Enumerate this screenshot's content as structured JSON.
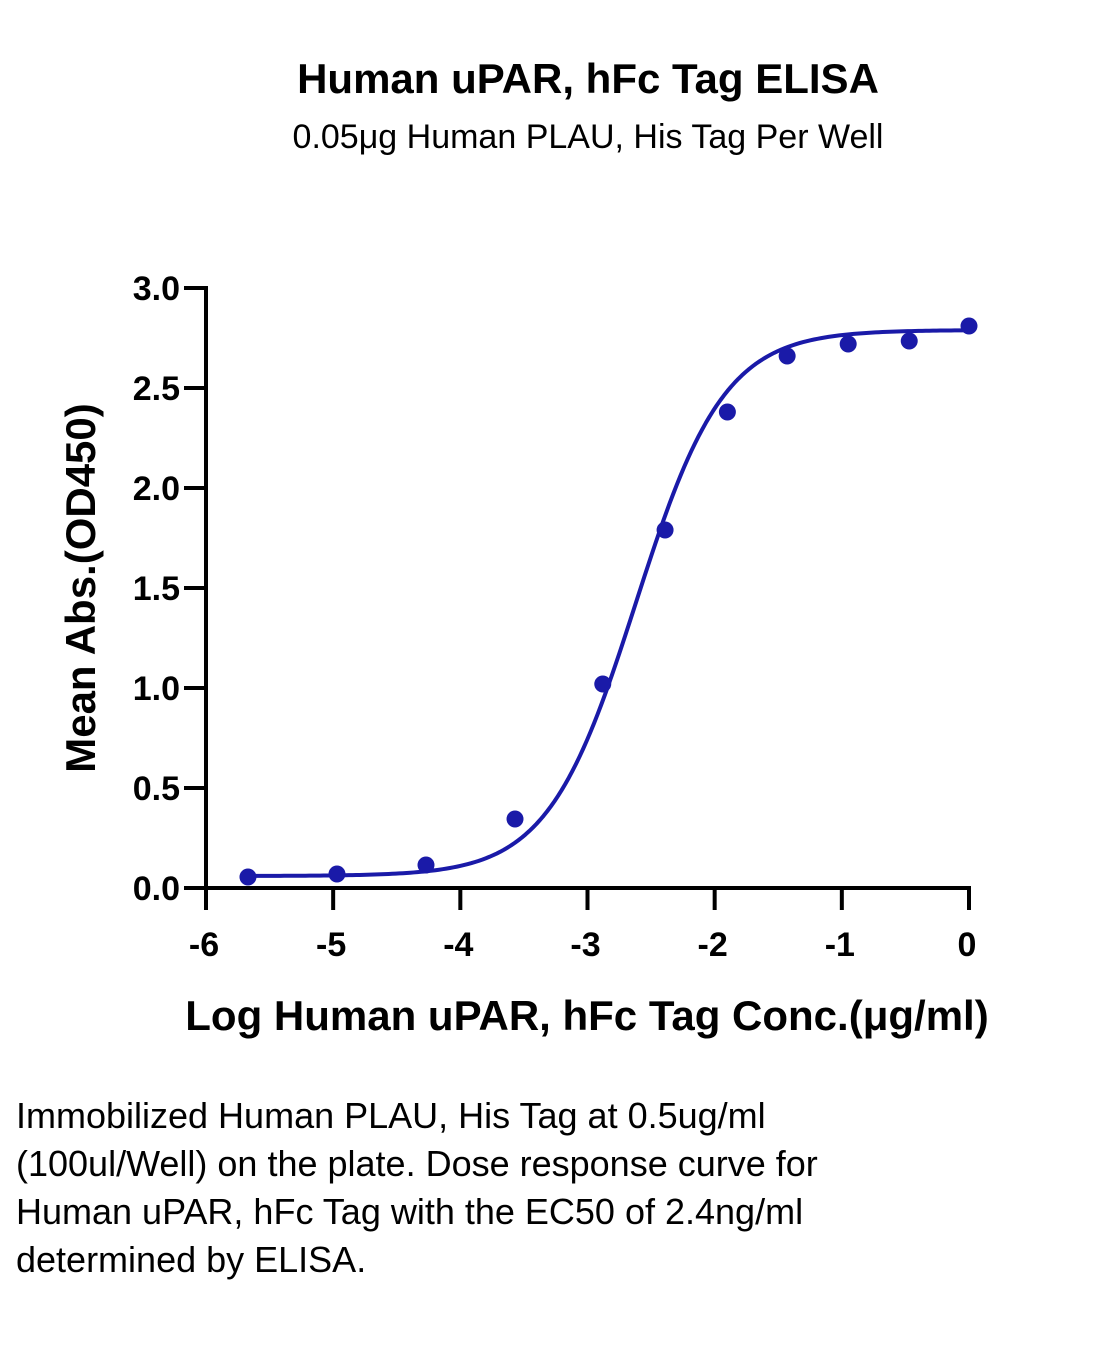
{
  "chart_data": {
    "type": "scatter",
    "title": "Human uPAR, hFc Tag ELISA",
    "subtitle": "0.05μg Human PLAU, His Tag Per Well",
    "xlabel": "Log Human uPAR, hFc Tag Conc.(μg/ml)",
    "ylabel": "Mean Abs.(OD450)",
    "xlim": [
      -6,
      0
    ],
    "ylim": [
      0,
      3.0
    ],
    "x_ticks": [
      -6,
      -5,
      -4,
      -3,
      -2,
      -1,
      0
    ],
    "x_tick_labels": [
      "-6",
      "-5",
      "-4",
      "-3",
      "-2",
      "-1",
      "0"
    ],
    "y_ticks": [
      0,
      0.5,
      1.0,
      1.5,
      2.0,
      2.5,
      3.0
    ],
    "y_tick_labels": [
      "0.0",
      "0.5",
      "1.0",
      "1.5",
      "2.0",
      "2.5",
      "3.0"
    ],
    "grid": false,
    "legend": "none",
    "color": "#1a1aa8",
    "series": [
      {
        "x": [
          -5.67,
          -4.97,
          -4.27,
          -3.57,
          -2.88,
          -2.39,
          -1.9,
          -1.43,
          -0.95,
          -0.47,
          0.0
        ],
        "y": [
          0.055,
          0.07,
          0.115,
          0.345,
          1.02,
          1.79,
          2.38,
          2.66,
          2.72,
          2.735,
          2.81
        ]
      }
    ],
    "fit_curve": {
      "model": "4PL",
      "bottom": 0.06,
      "top": 2.79,
      "logEC50": -2.62,
      "hill": 1.25
    }
  },
  "caption": "Immobilized Human PLAU, His Tag at 0.5ug/ml (100ul/Well) on the plate. Dose response curve for Human uPAR, hFc Tag with the EC50 of 2.4ng/ml determined by ELISA."
}
